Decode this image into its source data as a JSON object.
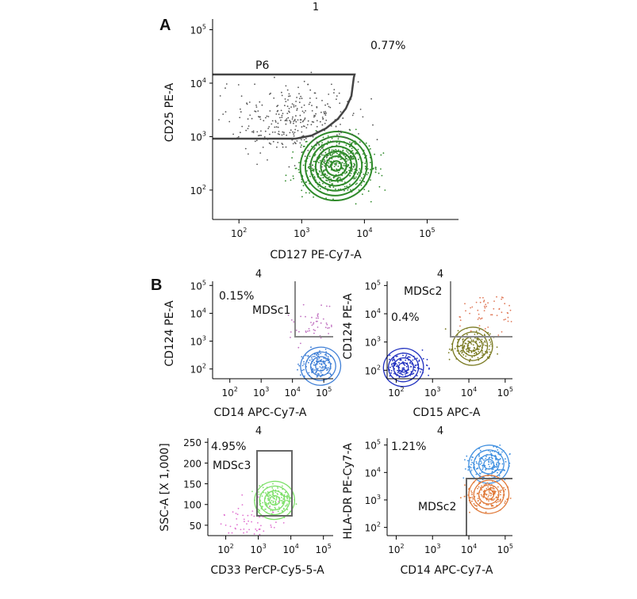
{
  "panels": {
    "a": "A",
    "b": "B"
  },
  "chart_data": [
    {
      "type": "scatter",
      "panel": "A",
      "title": "1",
      "xlabel": "CD127 PE-Cy7-A",
      "ylabel": "CD25 PE-A",
      "xscale": "log",
      "yscale": "log",
      "xticks": [
        "10^2",
        "10^3",
        "10^4",
        "10^5"
      ],
      "yticks": [
        "10^2",
        "10^3",
        "10^4",
        "10^5"
      ],
      "gate": {
        "name": "P6",
        "percent": "0.77%"
      },
      "populations": [
        {
          "color": "#2f8a2a",
          "x_center_log": 3.55,
          "y_center_log": 2.45,
          "style": "contour"
        },
        {
          "color": "#555555",
          "x_center_log": 2.9,
          "y_center_log": 3.3,
          "style": "dots"
        }
      ]
    },
    {
      "type": "scatter",
      "panel": "B",
      "title": "4",
      "xlabel": "CD14 APC-Cy7-A",
      "ylabel": "CD124 PE-A",
      "xscale": "log",
      "yscale": "log",
      "xticks": [
        "10^2",
        "10^3",
        "10^4",
        "10^5"
      ],
      "yticks": [
        "10^2",
        "10^3",
        "10^4",
        "10^5"
      ],
      "gate": {
        "name": "MDSc1",
        "percent": "0.15%"
      },
      "populations": [
        {
          "color": "#3f7fd6",
          "x_center_log": 4.9,
          "y_center_log": 2.1,
          "style": "contour"
        },
        {
          "color": "#c070c0",
          "x_center_log": 4.8,
          "y_center_log": 3.6,
          "style": "dots"
        }
      ]
    },
    {
      "type": "scatter",
      "panel": "B",
      "title": "4",
      "xlabel": "CD15 APC-A",
      "ylabel": "CD124 PE-A",
      "xscale": "log",
      "yscale": "log",
      "xticks": [
        "10^2",
        "10^3",
        "10^4",
        "10^5"
      ],
      "yticks": [
        "10^2",
        "10^3",
        "10^4",
        "10^5"
      ],
      "gate": {
        "name": "MDSc2",
        "percent": "0.4%"
      },
      "populations": [
        {
          "color": "#1f2fbf",
          "x_center_log": 2.2,
          "y_center_log": 2.1,
          "style": "contour"
        },
        {
          "color": "#7a7a22",
          "x_center_log": 4.1,
          "y_center_log": 2.85,
          "style": "contour"
        },
        {
          "color": "#e07a5a",
          "x_center_log": 4.6,
          "y_center_log": 3.9,
          "style": "dots"
        }
      ]
    },
    {
      "type": "scatter",
      "panel": "B",
      "title": "4",
      "xlabel": "CD33 PerCP-Cy5-5-A",
      "ylabel": "SSC-A [X 1,000]",
      "xscale": "log",
      "yscale": "linear",
      "xticks": [
        "10^2",
        "10^3",
        "10^4",
        "10^5"
      ],
      "yticks": [
        "50",
        "100",
        "150",
        "200",
        "250"
      ],
      "gate": {
        "name": "MDSc3",
        "percent": "4.95%"
      },
      "populations": [
        {
          "color": "#7ee06a",
          "x_center_log": 3.5,
          "y_center": 110,
          "style": "contour"
        },
        {
          "color": "#e070d0",
          "x_center_log": 2.8,
          "y_center": 60,
          "style": "dots"
        }
      ]
    },
    {
      "type": "scatter",
      "panel": "B",
      "title": "4",
      "xlabel": "CD14 APC-Cy7-A",
      "ylabel": "HLA-DR PE-Cy7-A",
      "xscale": "log",
      "yscale": "log",
      "xticks": [
        "10^2",
        "10^3",
        "10^4",
        "10^5"
      ],
      "yticks": [
        "10^2",
        "10^3",
        "10^4",
        "10^5"
      ],
      "gate": {
        "name": "MDSc2",
        "percent": "1.21%"
      },
      "populations": [
        {
          "color": "#3f8fe0",
          "x_center_log": 4.55,
          "y_center_log": 4.3,
          "style": "contour"
        },
        {
          "color": "#e07a3a",
          "x_center_log": 4.55,
          "y_center_log": 3.2,
          "style": "contour"
        }
      ]
    }
  ]
}
